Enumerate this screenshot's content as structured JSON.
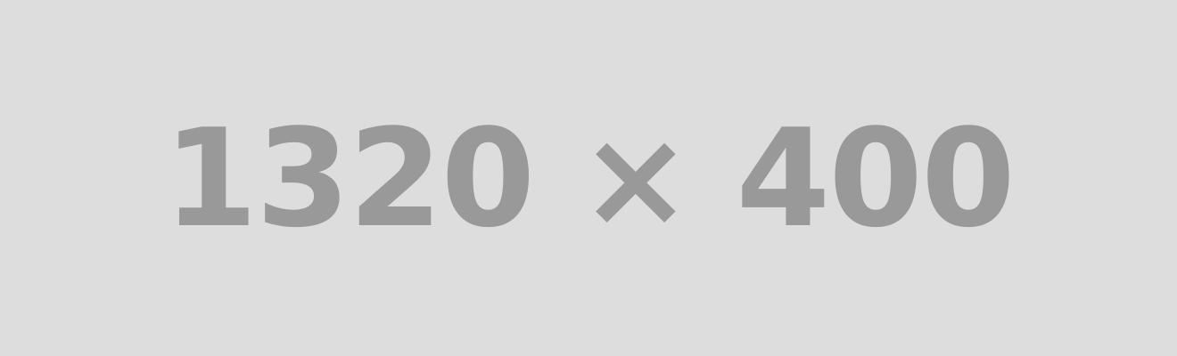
{
  "placeholder": {
    "text": "1320 × 400",
    "background_color": "#dddddd",
    "text_color": "#999999"
  }
}
